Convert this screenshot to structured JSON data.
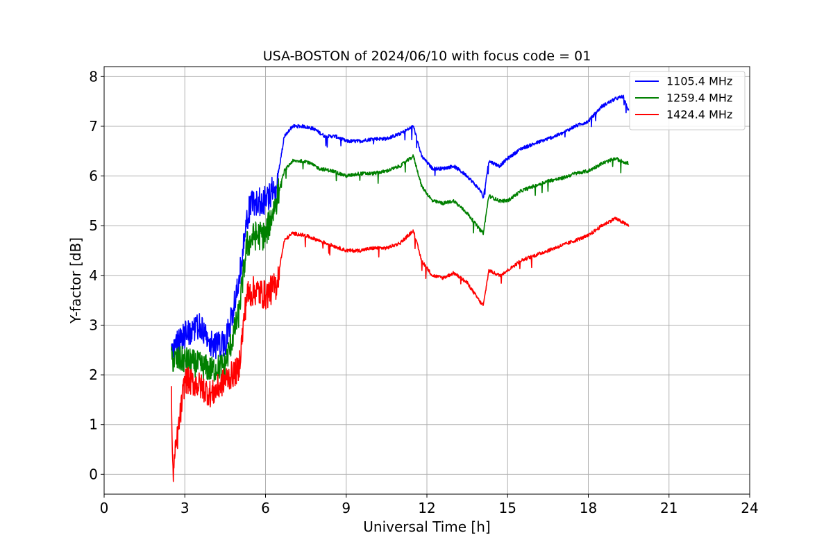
{
  "chart_data": {
    "type": "line",
    "title": "USA-BOSTON of 2024/06/10 with focus code = 01",
    "xlabel": "Universal Time [h]",
    "ylabel": "Y-factor [dB]",
    "xlim": [
      0,
      24
    ],
    "ylim": [
      -0.4,
      8.2
    ],
    "xticks": [
      0,
      3,
      6,
      9,
      12,
      15,
      18,
      21,
      24
    ],
    "yticks": [
      0,
      1,
      2,
      3,
      4,
      5,
      6,
      7,
      8
    ],
    "grid": true,
    "legend_position": "top-right",
    "series": [
      {
        "name": "1105.4 MHz",
        "color": "#0000ff",
        "points": [
          [
            2.5,
            2.5
          ],
          [
            3.0,
            2.8
          ],
          [
            3.5,
            3.0
          ],
          [
            4.0,
            2.6
          ],
          [
            4.5,
            2.6
          ],
          [
            5.0,
            3.8
          ],
          [
            5.3,
            5.2
          ],
          [
            5.6,
            5.5
          ],
          [
            6.0,
            5.5
          ],
          [
            6.4,
            5.8
          ],
          [
            6.7,
            6.8
          ],
          [
            7.0,
            7.0
          ],
          [
            7.4,
            7.0
          ],
          [
            7.8,
            6.95
          ],
          [
            8.2,
            6.8
          ],
          [
            8.6,
            6.8
          ],
          [
            9.0,
            6.7
          ],
          [
            9.5,
            6.7
          ],
          [
            10.0,
            6.75
          ],
          [
            10.5,
            6.75
          ],
          [
            11.0,
            6.85
          ],
          [
            11.5,
            7.0
          ],
          [
            11.8,
            6.4
          ],
          [
            12.2,
            6.15
          ],
          [
            12.6,
            6.15
          ],
          [
            13.0,
            6.2
          ],
          [
            13.5,
            6.0
          ],
          [
            14.0,
            5.7
          ],
          [
            14.1,
            5.55
          ],
          [
            14.3,
            6.3
          ],
          [
            14.7,
            6.2
          ],
          [
            15.0,
            6.35
          ],
          [
            15.5,
            6.55
          ],
          [
            16.0,
            6.65
          ],
          [
            16.5,
            6.75
          ],
          [
            17.0,
            6.85
          ],
          [
            17.5,
            7.0
          ],
          [
            18.0,
            7.1
          ],
          [
            18.5,
            7.4
          ],
          [
            19.0,
            7.55
          ],
          [
            19.3,
            7.6
          ],
          [
            19.5,
            7.3
          ]
        ]
      },
      {
        "name": "1259.4 MHz",
        "color": "#008000",
        "points": [
          [
            2.5,
            2.3
          ],
          [
            3.0,
            2.3
          ],
          [
            3.5,
            2.2
          ],
          [
            4.0,
            2.1
          ],
          [
            4.5,
            2.2
          ],
          [
            5.0,
            3.2
          ],
          [
            5.3,
            4.6
          ],
          [
            5.6,
            4.8
          ],
          [
            6.0,
            4.8
          ],
          [
            6.4,
            5.5
          ],
          [
            6.7,
            6.1
          ],
          [
            7.0,
            6.3
          ],
          [
            7.5,
            6.3
          ],
          [
            8.0,
            6.15
          ],
          [
            8.5,
            6.1
          ],
          [
            9.0,
            6.0
          ],
          [
            9.5,
            6.05
          ],
          [
            10.0,
            6.05
          ],
          [
            10.5,
            6.1
          ],
          [
            11.0,
            6.2
          ],
          [
            11.5,
            6.4
          ],
          [
            11.8,
            5.8
          ],
          [
            12.2,
            5.5
          ],
          [
            12.6,
            5.45
          ],
          [
            13.0,
            5.5
          ],
          [
            13.5,
            5.25
          ],
          [
            14.0,
            4.9
          ],
          [
            14.1,
            4.85
          ],
          [
            14.3,
            5.6
          ],
          [
            14.7,
            5.5
          ],
          [
            15.0,
            5.5
          ],
          [
            15.5,
            5.7
          ],
          [
            16.0,
            5.8
          ],
          [
            16.5,
            5.9
          ],
          [
            17.0,
            5.95
          ],
          [
            17.5,
            6.05
          ],
          [
            18.0,
            6.1
          ],
          [
            18.5,
            6.25
          ],
          [
            19.0,
            6.35
          ],
          [
            19.5,
            6.25
          ]
        ]
      },
      {
        "name": "1424.4 MHz",
        "color": "#ff0000",
        "points": [
          [
            2.5,
            1.6
          ],
          [
            2.55,
            0.0
          ],
          [
            3.0,
            1.9
          ],
          [
            3.5,
            1.8
          ],
          [
            4.0,
            1.6
          ],
          [
            4.5,
            1.9
          ],
          [
            5.0,
            2.1
          ],
          [
            5.3,
            3.6
          ],
          [
            5.6,
            3.7
          ],
          [
            6.0,
            3.6
          ],
          [
            6.4,
            3.8
          ],
          [
            6.7,
            4.7
          ],
          [
            7.0,
            4.85
          ],
          [
            7.5,
            4.8
          ],
          [
            8.0,
            4.7
          ],
          [
            8.5,
            4.6
          ],
          [
            9.0,
            4.5
          ],
          [
            9.5,
            4.5
          ],
          [
            10.0,
            4.55
          ],
          [
            10.5,
            4.55
          ],
          [
            11.0,
            4.65
          ],
          [
            11.5,
            4.9
          ],
          [
            11.8,
            4.3
          ],
          [
            12.2,
            4.0
          ],
          [
            12.6,
            3.95
          ],
          [
            13.0,
            4.05
          ],
          [
            13.5,
            3.85
          ],
          [
            14.0,
            3.45
          ],
          [
            14.1,
            3.4
          ],
          [
            14.3,
            4.1
          ],
          [
            14.7,
            4.0
          ],
          [
            15.0,
            4.1
          ],
          [
            15.5,
            4.3
          ],
          [
            16.0,
            4.4
          ],
          [
            16.5,
            4.5
          ],
          [
            17.0,
            4.6
          ],
          [
            17.5,
            4.7
          ],
          [
            18.0,
            4.8
          ],
          [
            18.5,
            5.0
          ],
          [
            19.0,
            5.15
          ],
          [
            19.5,
            5.0
          ]
        ]
      }
    ]
  }
}
